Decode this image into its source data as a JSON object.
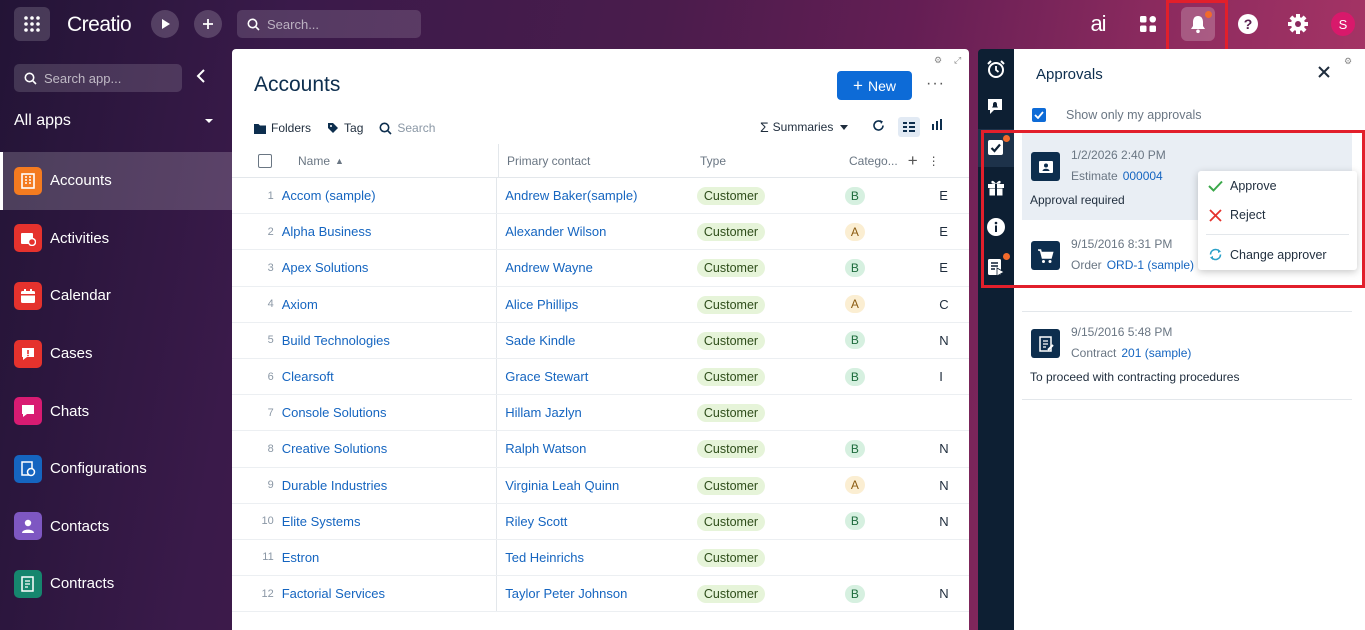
{
  "topbar": {
    "logo": "Creatio",
    "search_placeholder": "Search...",
    "ai_label": "ai",
    "avatar_letter": "S"
  },
  "sidebar": {
    "search_placeholder": "Search app...",
    "workspace": "All apps",
    "items": [
      {
        "label": "Accounts",
        "color": "#f47b20"
      },
      {
        "label": "Activities",
        "color": "#e5322d"
      },
      {
        "label": "Calendar",
        "color": "#e5322d"
      },
      {
        "label": "Cases",
        "color": "#e5322d"
      },
      {
        "label": "Chats",
        "color": "#d81b72"
      },
      {
        "label": "Configurations",
        "color": "#1565c0"
      },
      {
        "label": "Contacts",
        "color": "#7e57c2"
      },
      {
        "label": "Contracts",
        "color": "#16866e"
      }
    ]
  },
  "main": {
    "title": "Accounts",
    "new_label": "New",
    "toolbar": {
      "folders": "Folders",
      "tag": "Tag",
      "search": "Search",
      "summaries": "Summaries"
    },
    "columns": {
      "name": "Name",
      "contact": "Primary contact",
      "type": "Type",
      "category": "Catego..."
    },
    "rows": [
      {
        "n": "1",
        "name": "Accom (sample)",
        "contact": "Andrew Baker(sample)",
        "type": "Customer",
        "cat": "B",
        "ex": "E"
      },
      {
        "n": "2",
        "name": "Alpha Business",
        "contact": "Alexander Wilson",
        "type": "Customer",
        "cat": "A",
        "ex": "E"
      },
      {
        "n": "3",
        "name": "Apex Solutions",
        "contact": "Andrew Wayne",
        "type": "Customer",
        "cat": "B",
        "ex": "E"
      },
      {
        "n": "4",
        "name": "Axiom",
        "contact": "Alice Phillips",
        "type": "Customer",
        "cat": "A",
        "ex": "C"
      },
      {
        "n": "5",
        "name": "Build Technologies",
        "contact": "Sade Kindle",
        "type": "Customer",
        "cat": "B",
        "ex": "N"
      },
      {
        "n": "6",
        "name": "Clearsoft",
        "contact": "Grace Stewart",
        "type": "Customer",
        "cat": "B",
        "ex": "I"
      },
      {
        "n": "7",
        "name": "Console Solutions",
        "contact": "Hillam Jazlyn",
        "type": "Customer",
        "cat": "",
        "ex": ""
      },
      {
        "n": "8",
        "name": "Creative Solutions",
        "contact": "Ralph Watson",
        "type": "Customer",
        "cat": "B",
        "ex": "N"
      },
      {
        "n": "9",
        "name": "Durable Industries",
        "contact": "Virginia Leah Quinn",
        "type": "Customer",
        "cat": "A",
        "ex": "N"
      },
      {
        "n": "10",
        "name": "Elite Systems",
        "contact": "Riley Scott",
        "type": "Customer",
        "cat": "B",
        "ex": "N"
      },
      {
        "n": "11",
        "name": "Estron",
        "contact": "Ted Heinrichs",
        "type": "Customer",
        "cat": "",
        "ex": ""
      },
      {
        "n": "12",
        "name": "Factorial Services",
        "contact": "Taylor Peter Johnson",
        "type": "Customer",
        "cat": "B",
        "ex": "N"
      }
    ]
  },
  "approvals": {
    "title": "Approvals",
    "only_my": "Show only my approvals",
    "cards": [
      {
        "date": "1/2/2026 2:40 PM",
        "entity": "Estimate",
        "ref": "000004",
        "desc": "Approval required"
      },
      {
        "date": "9/15/2016 8:31 PM",
        "entity": "Order",
        "ref": "ORD-1 (sample)",
        "desc": ""
      },
      {
        "date": "9/15/2016 5:48 PM",
        "entity": "Contract",
        "ref": "201 (sample)",
        "desc": "To proceed with contracting procedures"
      }
    ],
    "menu": {
      "approve": "Approve",
      "reject": "Reject",
      "change": "Change approver"
    }
  }
}
